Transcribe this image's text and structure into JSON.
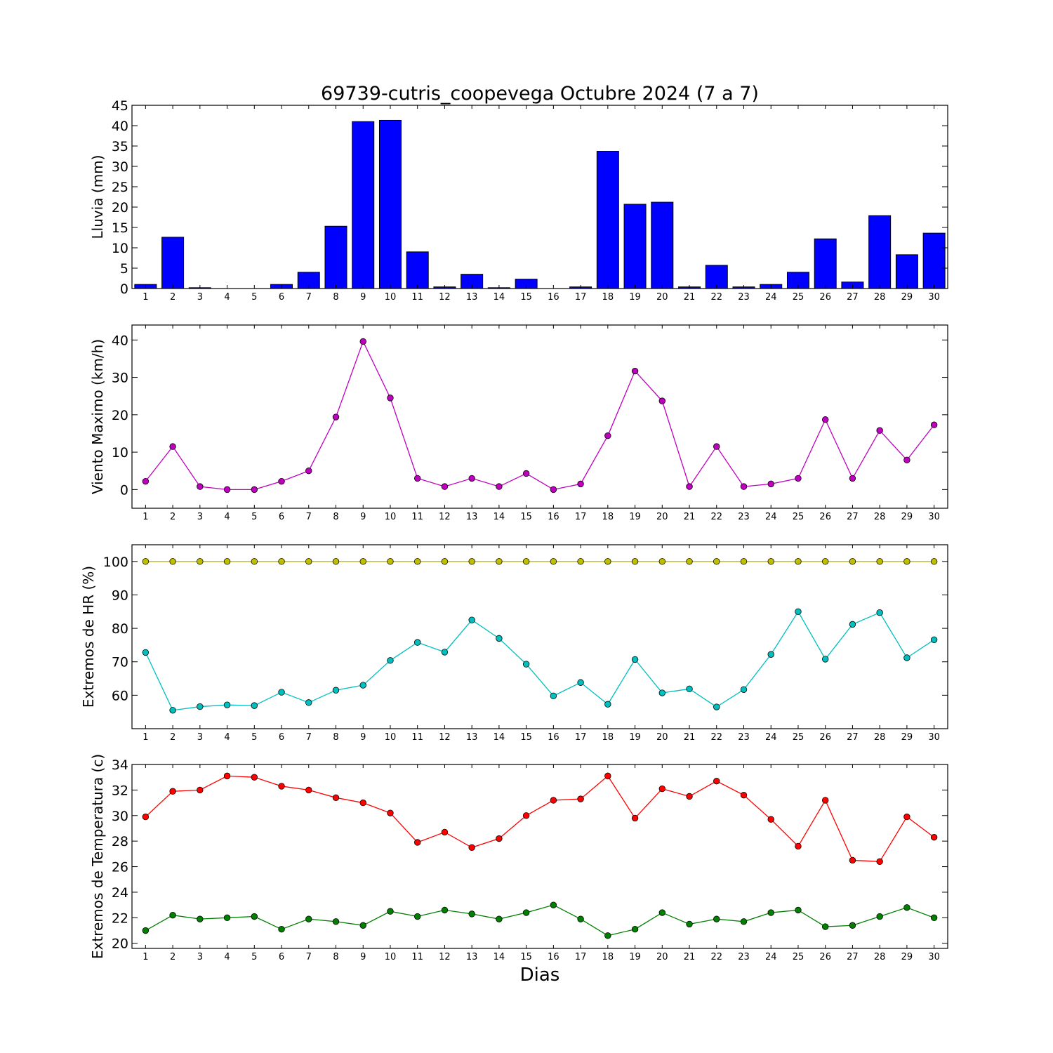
{
  "chart_data": {
    "title": "69739-cutris_coopevega Octubre 2024  (7 a 7)",
    "xlabel": "Dias",
    "days": [
      1,
      2,
      3,
      4,
      5,
      6,
      7,
      8,
      9,
      10,
      11,
      12,
      13,
      14,
      15,
      16,
      17,
      18,
      19,
      20,
      21,
      22,
      23,
      24,
      25,
      26,
      27,
      28,
      29,
      30
    ],
    "panels": [
      {
        "type": "bar",
        "ylabel": "Lluvia (mm)",
        "ylim": [
          0,
          45
        ],
        "yticks": [
          0,
          5,
          10,
          15,
          20,
          25,
          30,
          35,
          40,
          45
        ],
        "series": [
          {
            "color": "#0000ff",
            "values": [
              1.0,
              12.6,
              0.2,
              0,
              0,
              1.0,
              4.0,
              15.3,
              41.0,
              41.3,
              9.0,
              0.4,
              3.5,
              0.2,
              2.3,
              0,
              0.4,
              33.7,
              20.7,
              21.2,
              0.4,
              5.7,
              0.4,
              1.0,
              4.0,
              12.2,
              1.6,
              17.9,
              8.3,
              13.6
            ]
          }
        ]
      },
      {
        "type": "line",
        "ylabel": "Viento Maximo (km/h)",
        "ylim": [
          -5,
          44
        ],
        "yticks": [
          0,
          10,
          20,
          30,
          40
        ],
        "series": [
          {
            "color": "#bf00bf",
            "values": [
              2.2,
              11.5,
              0.8,
              0,
              0,
              2.2,
              5.0,
              19.4,
              39.6,
              24.5,
              3.0,
              0.8,
              3.0,
              0.8,
              4.3,
              0,
              1.5,
              14.4,
              31.7,
              23.7,
              0.8,
              11.5,
              0.8,
              1.5,
              3.0,
              18.7,
              3.0,
              15.8,
              7.9,
              17.3
            ]
          }
        ]
      },
      {
        "type": "line",
        "ylabel": "Extremos de HR (%)",
        "ylim": [
          50,
          105
        ],
        "yticks": [
          60,
          70,
          80,
          90,
          100
        ],
        "series": [
          {
            "color": "#bfbf00",
            "values": [
              100,
              100,
              100,
              100,
              100,
              100,
              100,
              100,
              100,
              100,
              100,
              100,
              100,
              100,
              100,
              100,
              100,
              100,
              100,
              100,
              100,
              100,
              100,
              100,
              100,
              100,
              100,
              100,
              100,
              100
            ]
          },
          {
            "color": "#00bfbf",
            "values": [
              72.8,
              55.5,
              56.6,
              57.1,
              56.9,
              60.9,
              57.8,
              61.5,
              63.0,
              70.4,
              75.8,
              72.9,
              82.5,
              77.0,
              69.3,
              59.8,
              63.8,
              57.3,
              70.7,
              60.7,
              61.9,
              56.5,
              61.7,
              72.2,
              85.0,
              70.8,
              81.2,
              84.7,
              71.2,
              76.6
            ]
          }
        ]
      },
      {
        "type": "line",
        "ylabel": "Extremos de Temperatura (c)",
        "ylim": [
          19.6,
          34
        ],
        "yticks": [
          20,
          22,
          24,
          26,
          28,
          30,
          32,
          34
        ],
        "series": [
          {
            "color": "#ff0000",
            "values": [
              29.9,
              31.9,
              32.0,
              33.1,
              33.0,
              32.3,
              32.0,
              31.4,
              31.0,
              30.2,
              27.9,
              28.7,
              27.5,
              28.2,
              30.0,
              31.2,
              31.3,
              33.1,
              29.8,
              32.1,
              31.5,
              32.7,
              31.6,
              29.7,
              27.6,
              31.2,
              26.5,
              26.4,
              29.9,
              28.3
            ]
          },
          {
            "color": "#008000",
            "values": [
              21.0,
              22.2,
              21.9,
              22.0,
              22.1,
              21.1,
              21.9,
              21.7,
              21.4,
              22.5,
              22.1,
              22.6,
              22.3,
              21.9,
              22.4,
              23.0,
              21.9,
              20.6,
              21.1,
              22.4,
              21.5,
              21.9,
              21.7,
              22.4,
              22.6,
              21.3,
              21.4,
              22.1,
              22.8,
              22.0
            ]
          }
        ]
      }
    ]
  }
}
